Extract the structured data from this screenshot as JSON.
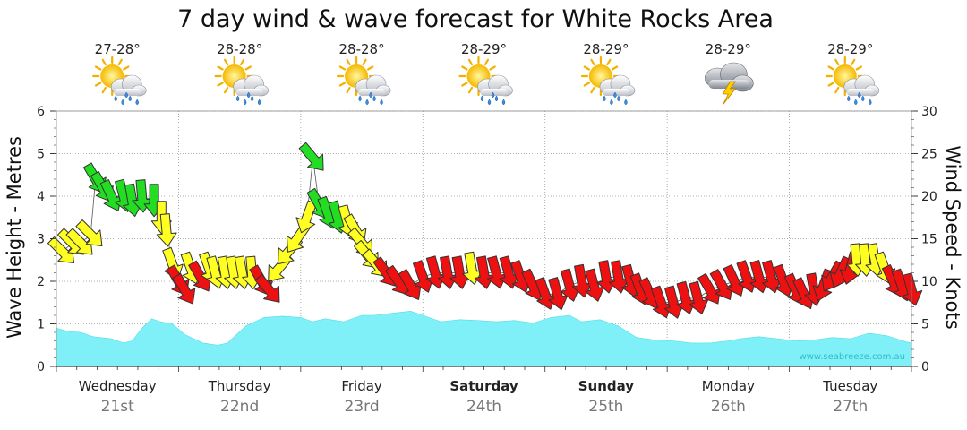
{
  "title": "7 day wind & wave forecast for White Rocks Area",
  "watermark": "www.seabreeze.com.au",
  "colors": {
    "wave_fill": "#7ff0f8",
    "wave_edge": "#55dde8",
    "arrow_green": "#22dd22",
    "arrow_yellow": "#ffff22",
    "arrow_red": "#ee1111",
    "grid": "#999999",
    "text": "#222222",
    "date_text": "#777777"
  },
  "days": [
    {
      "name": "Wednesday",
      "date": "21st",
      "temp": "27-28°",
      "icon": "sun-cloud-rain-icon",
      "bold": false
    },
    {
      "name": "Thursday",
      "date": "22nd",
      "temp": "28-28°",
      "icon": "sun-cloud-rain-icon",
      "bold": false
    },
    {
      "name": "Friday",
      "date": "23rd",
      "temp": "28-28°",
      "icon": "sun-cloud-rain-icon",
      "bold": false
    },
    {
      "name": "Saturday",
      "date": "24th",
      "temp": "28-29°",
      "icon": "sun-cloud-rain-icon",
      "bold": true
    },
    {
      "name": "Sunday",
      "date": "25th",
      "temp": "28-29°",
      "icon": "sun-cloud-rain-icon",
      "bold": true
    },
    {
      "name": "Monday",
      "date": "26th",
      "temp": "28-29°",
      "icon": "storm-cloud-icon",
      "bold": false
    },
    {
      "name": "Tuesday",
      "date": "27th",
      "temp": "28-29°",
      "icon": "sun-cloud-rain-icon",
      "bold": false
    }
  ],
  "chart_data": {
    "type": "area",
    "xlim": [
      0,
      7
    ],
    "grid": true,
    "left_axis": {
      "label": "Wave Height - Metres",
      "ylim": [
        0,
        6
      ],
      "ticks": [
        0,
        1,
        2,
        3,
        4,
        5,
        6
      ]
    },
    "right_axis": {
      "label": "Wind Speed - Knots",
      "ylim": [
        0,
        30
      ],
      "ticks": [
        0,
        5,
        10,
        15,
        20,
        25,
        30
      ]
    },
    "wave_height": {
      "x": [
        0,
        0.1,
        0.2,
        0.3,
        0.45,
        0.55,
        0.62,
        0.7,
        0.78,
        0.85,
        0.95,
        1.05,
        1.2,
        1.32,
        1.4,
        1.55,
        1.7,
        1.85,
        2.0,
        2.1,
        2.2,
        2.35,
        2.5,
        2.6,
        2.75,
        2.9,
        3.0,
        3.15,
        3.3,
        3.45,
        3.6,
        3.75,
        3.9,
        4.05,
        4.2,
        4.3,
        4.45,
        4.6,
        4.75,
        4.9,
        5.05,
        5.2,
        5.35,
        5.5,
        5.6,
        5.75,
        5.9,
        6.05,
        6.2,
        6.35,
        6.5,
        6.65,
        6.8,
        6.95,
        7.0
      ],
      "values": [
        0.9,
        0.82,
        0.8,
        0.7,
        0.65,
        0.55,
        0.6,
        0.9,
        1.12,
        1.05,
        1.0,
        0.75,
        0.55,
        0.5,
        0.55,
        0.95,
        1.15,
        1.18,
        1.15,
        1.05,
        1.12,
        1.05,
        1.2,
        1.2,
        1.25,
        1.3,
        1.2,
        1.05,
        1.1,
        1.08,
        1.05,
        1.08,
        1.02,
        1.15,
        1.2,
        1.05,
        1.1,
        0.95,
        0.68,
        0.62,
        0.6,
        0.55,
        0.55,
        0.6,
        0.65,
        0.7,
        0.65,
        0.6,
        0.62,
        0.68,
        0.65,
        0.78,
        0.72,
        0.58,
        0.55
      ]
    },
    "wind": [
      {
        "x": 0.05,
        "knots": 13.5,
        "level": "yellow",
        "dir": 135
      },
      {
        "x": 0.13,
        "knots": 14.5,
        "level": "yellow",
        "dir": 135
      },
      {
        "x": 0.2,
        "knots": 14.5,
        "level": "yellow",
        "dir": 135
      },
      {
        "x": 0.28,
        "knots": 15.5,
        "level": "yellow",
        "dir": 135
      },
      {
        "x": 0.32,
        "knots": 22.0,
        "level": "green",
        "dir": 150
      },
      {
        "x": 0.38,
        "knots": 21.0,
        "level": "green",
        "dir": 150
      },
      {
        "x": 0.45,
        "knots": 20.0,
        "level": "green",
        "dir": 155
      },
      {
        "x": 0.55,
        "knots": 20.0,
        "level": "green",
        "dir": 165
      },
      {
        "x": 0.62,
        "knots": 19.5,
        "level": "green",
        "dir": 170
      },
      {
        "x": 0.7,
        "knots": 20.0,
        "level": "green",
        "dir": 175
      },
      {
        "x": 0.8,
        "knots": 19.5,
        "level": "green",
        "dir": 180
      },
      {
        "x": 0.86,
        "knots": 17.5,
        "level": "yellow",
        "dir": 180
      },
      {
        "x": 0.9,
        "knots": 16.0,
        "level": "yellow",
        "dir": 175
      },
      {
        "x": 0.95,
        "knots": 12.0,
        "level": "yellow",
        "dir": 160
      },
      {
        "x": 1.0,
        "knots": 10.0,
        "level": "red",
        "dir": 150
      },
      {
        "x": 1.05,
        "knots": 9.0,
        "level": "red",
        "dir": 150
      },
      {
        "x": 1.1,
        "knots": 11.5,
        "level": "yellow",
        "dir": 160
      },
      {
        "x": 1.18,
        "knots": 10.5,
        "level": "red",
        "dir": 150
      },
      {
        "x": 1.25,
        "knots": 11.5,
        "level": "yellow",
        "dir": 160
      },
      {
        "x": 1.3,
        "knots": 11.0,
        "level": "yellow",
        "dir": 165
      },
      {
        "x": 1.38,
        "knots": 11.0,
        "level": "yellow",
        "dir": 170
      },
      {
        "x": 1.45,
        "knots": 11.0,
        "level": "yellow",
        "dir": 170
      },
      {
        "x": 1.52,
        "knots": 11.0,
        "level": "yellow",
        "dir": 170
      },
      {
        "x": 1.6,
        "knots": 11.0,
        "level": "yellow",
        "dir": 175
      },
      {
        "x": 1.68,
        "knots": 10.0,
        "level": "red",
        "dir": 150
      },
      {
        "x": 1.74,
        "knots": 9.0,
        "level": "red",
        "dir": 140
      },
      {
        "x": 1.82,
        "knots": 11.5,
        "level": "yellow",
        "dir": 220
      },
      {
        "x": 1.9,
        "knots": 13.5,
        "level": "yellow",
        "dir": 220
      },
      {
        "x": 1.97,
        "knots": 15.0,
        "level": "yellow",
        "dir": 215
      },
      {
        "x": 2.05,
        "knots": 17.5,
        "level": "yellow",
        "dir": 200
      },
      {
        "x": 2.1,
        "knots": 24.5,
        "level": "green",
        "dir": 140
      },
      {
        "x": 2.15,
        "knots": 19.0,
        "level": "green",
        "dir": 150
      },
      {
        "x": 2.22,
        "knots": 18.0,
        "level": "green",
        "dir": 160
      },
      {
        "x": 2.3,
        "knots": 17.5,
        "level": "green",
        "dir": 165
      },
      {
        "x": 2.38,
        "knots": 17.0,
        "level": "yellow",
        "dir": 165
      },
      {
        "x": 2.45,
        "knots": 16.0,
        "level": "yellow",
        "dir": 150
      },
      {
        "x": 2.5,
        "knots": 14.5,
        "level": "yellow",
        "dir": 140
      },
      {
        "x": 2.55,
        "knots": 13.0,
        "level": "yellow",
        "dir": 140
      },
      {
        "x": 2.62,
        "knots": 12.0,
        "level": "yellow",
        "dir": 140
      },
      {
        "x": 2.7,
        "knots": 11.0,
        "level": "red",
        "dir": 145
      },
      {
        "x": 2.8,
        "knots": 10.0,
        "level": "red",
        "dir": 145
      },
      {
        "x": 2.9,
        "knots": 9.5,
        "level": "red",
        "dir": 150
      },
      {
        "x": 3.0,
        "knots": 10.5,
        "level": "red",
        "dir": 160
      },
      {
        "x": 3.1,
        "knots": 11.0,
        "level": "red",
        "dir": 165
      },
      {
        "x": 3.2,
        "knots": 11.0,
        "level": "red",
        "dir": 170
      },
      {
        "x": 3.3,
        "knots": 11.0,
        "level": "red",
        "dir": 170
      },
      {
        "x": 3.4,
        "knots": 11.5,
        "level": "yellow",
        "dir": 170
      },
      {
        "x": 3.5,
        "knots": 11.0,
        "level": "red",
        "dir": 170
      },
      {
        "x": 3.6,
        "knots": 11.0,
        "level": "red",
        "dir": 165
      },
      {
        "x": 3.7,
        "knots": 11.0,
        "level": "red",
        "dir": 165
      },
      {
        "x": 3.8,
        "knots": 10.5,
        "level": "red",
        "dir": 160
      },
      {
        "x": 3.9,
        "knots": 9.5,
        "level": "red",
        "dir": 155
      },
      {
        "x": 4.0,
        "knots": 8.5,
        "level": "red",
        "dir": 160
      },
      {
        "x": 4.1,
        "knots": 8.5,
        "level": "red",
        "dir": 165
      },
      {
        "x": 4.2,
        "knots": 9.5,
        "level": "red",
        "dir": 165
      },
      {
        "x": 4.3,
        "knots": 10.0,
        "level": "red",
        "dir": 170
      },
      {
        "x": 4.4,
        "knots": 9.5,
        "level": "red",
        "dir": 165
      },
      {
        "x": 4.5,
        "knots": 10.5,
        "level": "red",
        "dir": 170
      },
      {
        "x": 4.6,
        "knots": 10.5,
        "level": "red",
        "dir": 170
      },
      {
        "x": 4.7,
        "knots": 10.0,
        "level": "red",
        "dir": 165
      },
      {
        "x": 4.78,
        "knots": 9.0,
        "level": "red",
        "dir": 160
      },
      {
        "x": 4.86,
        "knots": 8.5,
        "level": "red",
        "dir": 155
      },
      {
        "x": 4.95,
        "knots": 7.5,
        "level": "red",
        "dir": 160
      },
      {
        "x": 5.05,
        "knots": 7.5,
        "level": "red",
        "dir": 165
      },
      {
        "x": 5.15,
        "knots": 8.0,
        "level": "red",
        "dir": 165
      },
      {
        "x": 5.25,
        "knots": 8.0,
        "level": "red",
        "dir": 165
      },
      {
        "x": 5.35,
        "knots": 9.0,
        "level": "red",
        "dir": 150
      },
      {
        "x": 5.45,
        "knots": 9.5,
        "level": "red",
        "dir": 150
      },
      {
        "x": 5.55,
        "knots": 10.0,
        "level": "red",
        "dir": 155
      },
      {
        "x": 5.65,
        "knots": 10.5,
        "level": "red",
        "dir": 160
      },
      {
        "x": 5.75,
        "knots": 10.5,
        "level": "red",
        "dir": 165
      },
      {
        "x": 5.85,
        "knots": 10.5,
        "level": "red",
        "dir": 165
      },
      {
        "x": 5.95,
        "knots": 10.0,
        "level": "red",
        "dir": 160
      },
      {
        "x": 6.05,
        "knots": 9.0,
        "level": "red",
        "dir": 155
      },
      {
        "x": 6.12,
        "knots": 8.5,
        "level": "red",
        "dir": 155
      },
      {
        "x": 6.2,
        "knots": 9.0,
        "level": "red",
        "dir": 170
      },
      {
        "x": 6.28,
        "knots": 9.5,
        "level": "red",
        "dir": 200
      },
      {
        "x": 6.35,
        "knots": 10.5,
        "level": "red",
        "dir": 210
      },
      {
        "x": 6.42,
        "knots": 11.0,
        "level": "red",
        "dir": 205
      },
      {
        "x": 6.5,
        "knots": 11.5,
        "level": "red",
        "dir": 195
      },
      {
        "x": 6.55,
        "knots": 12.5,
        "level": "yellow",
        "dir": 175
      },
      {
        "x": 6.62,
        "knots": 12.5,
        "level": "yellow",
        "dir": 175
      },
      {
        "x": 6.7,
        "knots": 12.5,
        "level": "yellow",
        "dir": 170
      },
      {
        "x": 6.78,
        "knots": 11.5,
        "level": "yellow",
        "dir": 160
      },
      {
        "x": 6.85,
        "knots": 10.0,
        "level": "red",
        "dir": 155
      },
      {
        "x": 6.92,
        "knots": 9.5,
        "level": "red",
        "dir": 160
      },
      {
        "x": 7.0,
        "knots": 9.0,
        "level": "red",
        "dir": 165
      }
    ]
  }
}
